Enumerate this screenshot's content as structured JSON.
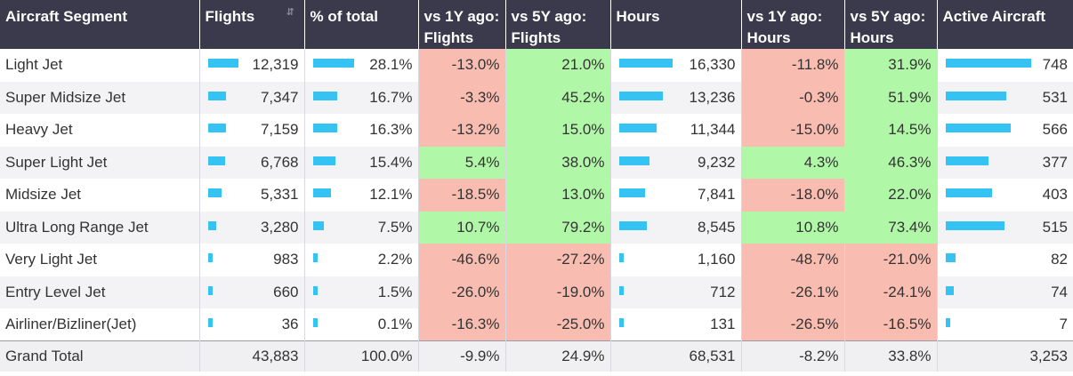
{
  "headers": [
    "Aircraft Segment",
    "Flights",
    "% of total",
    "vs 1Y ago: Flights",
    "vs 5Y ago: Flights",
    "Hours",
    "vs 1Y ago: Hours",
    "vs 5Y ago: Hours",
    "Active Aircraft"
  ],
  "colors": {
    "header_bg": "#3a3a4c",
    "bar": "#34c3f2",
    "positive": "#b1f7a8",
    "negative": "#f9bcb0"
  },
  "rows": [
    {
      "segment": "Light Jet",
      "flights": "12,319",
      "pct": "28.1%",
      "vs1y_flights": "-13.0%",
      "vs5y_flights": "21.0%",
      "hours": "16,330",
      "vs1y_hours": "-11.8%",
      "vs5y_hours": "31.9%",
      "active": "748"
    },
    {
      "segment": "Super Midsize Jet",
      "flights": "7,347",
      "pct": "16.7%",
      "vs1y_flights": "-3.3%",
      "vs5y_flights": "45.2%",
      "hours": "13,236",
      "vs1y_hours": "-0.3%",
      "vs5y_hours": "51.9%",
      "active": "531"
    },
    {
      "segment": "Heavy Jet",
      "flights": "7,159",
      "pct": "16.3%",
      "vs1y_flights": "-13.2%",
      "vs5y_flights": "15.0%",
      "hours": "11,344",
      "vs1y_hours": "-15.0%",
      "vs5y_hours": "14.5%",
      "active": "566"
    },
    {
      "segment": "Super Light Jet",
      "flights": "6,768",
      "pct": "15.4%",
      "vs1y_flights": "5.4%",
      "vs5y_flights": "38.0%",
      "hours": "9,232",
      "vs1y_hours": "4.3%",
      "vs5y_hours": "46.3%",
      "active": "377"
    },
    {
      "segment": "Midsize Jet",
      "flights": "5,331",
      "pct": "12.1%",
      "vs1y_flights": "-18.5%",
      "vs5y_flights": "13.0%",
      "hours": "7,841",
      "vs1y_hours": "-18.0%",
      "vs5y_hours": "22.0%",
      "active": "403"
    },
    {
      "segment": "Ultra Long Range Jet",
      "flights": "3,280",
      "pct": "7.5%",
      "vs1y_flights": "10.7%",
      "vs5y_flights": "79.2%",
      "hours": "8,545",
      "vs1y_hours": "10.8%",
      "vs5y_hours": "73.4%",
      "active": "515"
    },
    {
      "segment": "Very Light Jet",
      "flights": "983",
      "pct": "2.2%",
      "vs1y_flights": "-46.6%",
      "vs5y_flights": "-27.2%",
      "hours": "1,160",
      "vs1y_hours": "-48.7%",
      "vs5y_hours": "-21.0%",
      "active": "82"
    },
    {
      "segment": "Entry Level Jet",
      "flights": "660",
      "pct": "1.5%",
      "vs1y_flights": "-26.0%",
      "vs5y_flights": "-19.0%",
      "hours": "712",
      "vs1y_hours": "-26.1%",
      "vs5y_hours": "-24.1%",
      "active": "74"
    },
    {
      "segment": "Airliner/Bizliner(Jet)",
      "flights": "36",
      "pct": "0.1%",
      "vs1y_flights": "-16.3%",
      "vs5y_flights": "-25.0%",
      "hours": "131",
      "vs1y_hours": "-26.5%",
      "vs5y_hours": "-16.5%",
      "active": "7"
    }
  ],
  "total": {
    "segment": "Grand Total",
    "flights": "43,883",
    "pct": "100.0%",
    "vs1y_flights": "-9.9%",
    "vs5y_flights": "24.9%",
    "hours": "68,531",
    "vs1y_hours": "-8.2%",
    "vs5y_hours": "33.8%",
    "active": "3,253"
  }
}
